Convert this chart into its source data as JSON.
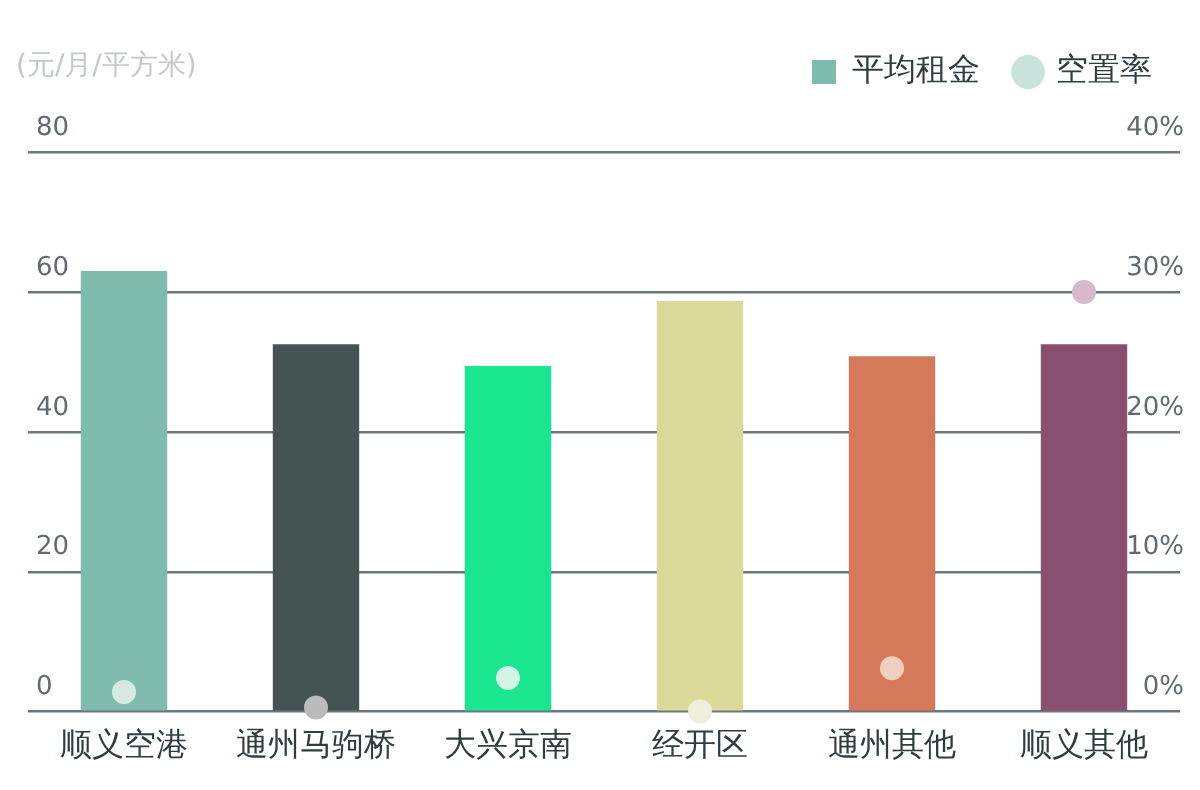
{
  "chart_data": {
    "type": "bar",
    "ylabel": "(元/月/平方米)",
    "categories": [
      "顺义空港",
      "通州马驹桥",
      "大兴京南",
      "经开区",
      "通州其他",
      "顺义其他"
    ],
    "series": [
      {
        "name": "平均租金",
        "color": "#80bcae",
        "colors": [
          "#80bcae",
          "#445453",
          "#19e68e",
          "#dbd99a",
          "#d4795a",
          "#894f70"
        ],
        "values": [
          63,
          52.5,
          49.4,
          58.7,
          50.8,
          52.5
        ]
      },
      {
        "name": "空置率",
        "type": "scatter",
        "axis": "y2",
        "color": "#c8e2dc",
        "colors": [
          "#d8e9e4",
          "#b8bcbc",
          "#d2f5e6",
          "#efeedd",
          "#f0cfc3",
          "#d5b8c9"
        ],
        "values": [
          1.4,
          0.3,
          2.4,
          0,
          3.1,
          30
        ]
      }
    ],
    "ylim": [
      0,
      80
    ],
    "yticks": [
      0,
      20,
      40,
      60,
      80
    ],
    "y2lim": [
      0,
      40
    ],
    "y2ticks": [
      {
        "value": 0,
        "label": "0%"
      },
      {
        "value": 10,
        "label": "10%"
      },
      {
        "value": 20,
        "label": "20%"
      },
      {
        "value": 30,
        "label": "30%"
      },
      {
        "value": 40,
        "label": "40%"
      }
    ],
    "grid": "y",
    "legend": "top right",
    "marker": "circle"
  }
}
